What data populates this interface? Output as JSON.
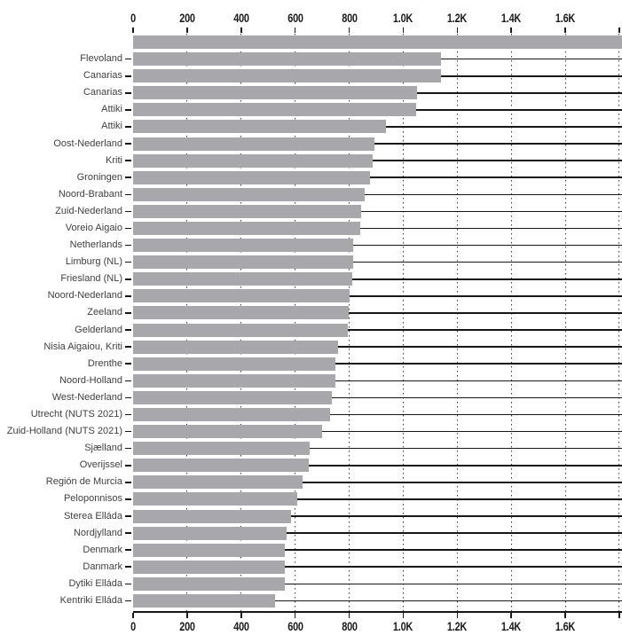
{
  "chart_data": {
    "type": "bar",
    "orientation": "horizontal",
    "title": "",
    "categories": [
      "",
      "Flevoland",
      "Canarias",
      "Canarias",
      "Attiki",
      "Attiki",
      "Oost-Nederland",
      "Kriti",
      "Groningen",
      "Noord-Brabant",
      "Zuid-Nederland",
      "Voreio Aigaio",
      "Netherlands",
      "Limburg (NL)",
      "Friesland (NL)",
      "Noord-Nederland",
      "Zeeland",
      "Gelderland",
      "Nisia Aigaiou, Kriti",
      "Drenthe",
      "Noord-Holland",
      "West-Nederland",
      "Utrecht (NUTS 2021)",
      "Zuid-Holland (NUTS 2021)",
      "Sjælland",
      "Overijssel",
      "Región de Murcia",
      "Peloponnisos",
      "Sterea Elláda",
      "Nordjylland",
      "Denmark",
      "Danmark",
      "Dytiki Elláda",
      "Kentriki Elláda"
    ],
    "values": [
      1810,
      1140,
      1140,
      1050,
      1048,
      937,
      894,
      888,
      878,
      858,
      843,
      842,
      816,
      814,
      810,
      803,
      797,
      795,
      758,
      750,
      749,
      735,
      729,
      699,
      654,
      652,
      627,
      609,
      584,
      567,
      563,
      562,
      561,
      527
    ],
    "first_bar_clipped_at_right_edge": true,
    "x_ticks": {
      "labels": [
        "0",
        "200",
        "400",
        "600",
        "800",
        "1.0K",
        "1.2K",
        "1.4K",
        "1.6K"
      ],
      "values": [
        0,
        200,
        400,
        600,
        800,
        1000,
        1200,
        1400,
        1600
      ]
    },
    "unlabeled_tick_value": 1800,
    "xlim": [
      0,
      1810
    ],
    "xlabel": "",
    "ylabel": "",
    "grid": "dotted-vertical",
    "legend": "none",
    "colors": {
      "bar": "#a8a8ac",
      "row_line": "#161616",
      "axis": "#1b1b1b",
      "label_text": "#3f3f3f",
      "tick_text": "#1b1b1b",
      "background": "#ffffff"
    }
  }
}
